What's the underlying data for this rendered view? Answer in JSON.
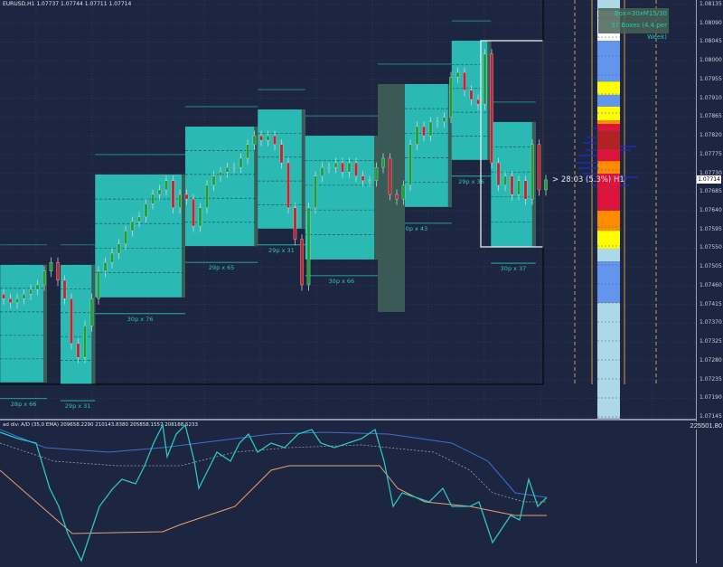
{
  "header": {
    "title": "EURUSD,H1  1.07737 1.07744 1.07711 1.07714"
  },
  "info_box": {
    "line1": "Box=30xM15/30",
    "line2": "37 Boxes (4.4 per Week)"
  },
  "timer_label": "> 28:03 (5.3%) H1",
  "indicator": {
    "title": "ad div: A/D (35,0 EMA) 209658.2290 210143.8380 205858.1557 208188.5233",
    "axis_top": "225501.80"
  },
  "colors": {
    "background": "#1c2640",
    "box": "#2bbab3",
    "bull": "#1e9e3a",
    "bear": "#c0262d",
    "label": "#2ec4b6"
  },
  "chart_data": {
    "type": "candlestick",
    "symbol": "EURUSD",
    "timeframe": "H1",
    "ylim": [
      1.07145,
      1.08135
    ],
    "current_price": "1.07714",
    "y_ticks": [
      "1.08135",
      "1.08090",
      "1.08045",
      "1.08000",
      "1.07955",
      "1.07910",
      "1.07865",
      "1.07820",
      "1.07775",
      "1.07730",
      "1.07685",
      "1.07640",
      "1.07595",
      "1.07550",
      "1.07505",
      "1.07460",
      "1.07415",
      "1.07370",
      "1.07325",
      "1.07280",
      "1.07235",
      "1.07190",
      "1.07145"
    ],
    "closes": [
      1.07429,
      1.07419,
      1.07429,
      1.0744,
      1.07451,
      1.07462,
      1.07495,
      1.07516,
      1.07473,
      1.07429,
      1.07321,
      1.07288,
      1.07364,
      1.07429,
      1.07495,
      1.07516,
      1.07538,
      1.0756,
      1.07592,
      1.07614,
      1.07625,
      1.07657,
      1.07679,
      1.0769,
      1.07712,
      1.07647,
      1.07679,
      1.07668,
      1.07603,
      1.07647,
      1.07701,
      1.07723,
      1.07733,
      1.07744,
      1.07744,
      1.07766,
      1.07799,
      1.0782,
      1.07809,
      1.0782,
      1.07799,
      1.07755,
      1.07647,
      1.07571,
      1.07462,
      1.07647,
      1.07723,
      1.07744,
      1.07744,
      1.07755,
      1.07733,
      1.07755,
      1.07723,
      1.07712,
      1.07712,
      1.07744,
      1.07766,
      1.07679,
      1.07668,
      1.07701,
      1.07799,
      1.07842,
      1.0782,
      1.07853,
      1.07853,
      1.07864,
      1.07961,
      1.07972,
      1.07929,
      1.07907,
      1.07896,
      1.08016,
      1.07755,
      1.07701,
      1.07723,
      1.07679,
      1.07712,
      1.07668,
      1.07799,
      1.0769,
      1.07714
    ],
    "boxes": [
      {
        "start": -0.5,
        "end": 6.4,
        "high": 1.0751,
        "low": 1.07228,
        "label": "28p x 66"
      },
      {
        "start": 8.4,
        "end": 13.5,
        "high": 1.0751,
        "low": 1.07223,
        "label": "29p x 31"
      },
      {
        "start": 13.5,
        "end": 26.8,
        "high": 1.07727,
        "low": 1.07432,
        "label": "30p x 76"
      },
      {
        "start": 26.8,
        "end": 37.5,
        "high": 1.07842,
        "low": 1.07555,
        "label": "29p x 65"
      },
      {
        "start": 37.5,
        "end": 44.5,
        "high": 1.07883,
        "low": 1.07597,
        "label": "29p x 31"
      },
      {
        "start": 44.5,
        "end": 55.2,
        "high": 1.0782,
        "low": 1.07523,
        "label": "30p x 66"
      },
      {
        "start": 55.2,
        "end": 66.1,
        "high": 1.07944,
        "low": 1.07649,
        "label": "30p x 43"
      },
      {
        "start": 66.1,
        "end": 71.9,
        "high": 1.08048,
        "low": 1.07762,
        "label": "29p x 36"
      },
      {
        "start": 71.9,
        "end": 78.5,
        "high": 1.07853,
        "low": 1.07553,
        "label": "30p x 37"
      }
    ],
    "heat_column": [
      {
        "from": 1.08146,
        "to": 1.0812,
        "color": "#add8e6"
      },
      {
        "from": 1.0812,
        "to": 1.08048,
        "color": "#ffffff"
      },
      {
        "from": 1.08048,
        "to": 1.0795,
        "color": "#6495ed"
      },
      {
        "from": 1.0795,
        "to": 1.07918,
        "color": "#ffff00"
      },
      {
        "from": 1.07918,
        "to": 1.0789,
        "color": "#6495ed"
      },
      {
        "from": 1.0789,
        "to": 1.07857,
        "color": "#ffff00"
      },
      {
        "from": 1.07857,
        "to": 1.07848,
        "color": "#ff8c00"
      },
      {
        "from": 1.07848,
        "to": 1.07831,
        "color": "#dc143c"
      },
      {
        "from": 1.07831,
        "to": 1.07788,
        "color": "#b22222"
      },
      {
        "from": 1.07788,
        "to": 1.07759,
        "color": "#dc143c"
      },
      {
        "from": 1.07759,
        "to": 1.07729,
        "color": "#ff8c00"
      },
      {
        "from": 1.07729,
        "to": 1.0764,
        "color": "#dc143c"
      },
      {
        "from": 1.0764,
        "to": 1.07592,
        "color": "#ff8c00"
      },
      {
        "from": 1.07592,
        "to": 1.07549,
        "color": "#ffff00"
      },
      {
        "from": 1.07549,
        "to": 1.07518,
        "color": "#add8e6"
      },
      {
        "from": 1.07518,
        "to": 1.07419,
        "color": "#6495ed"
      },
      {
        "from": 1.07419,
        "to": 1.07141,
        "color": "#add8e6"
      }
    ]
  }
}
